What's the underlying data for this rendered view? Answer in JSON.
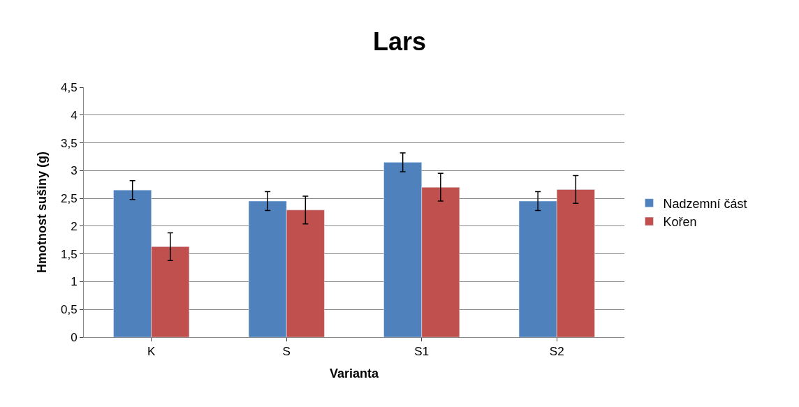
{
  "chart_data": {
    "type": "bar",
    "title": "Lars",
    "xlabel": "Varianta",
    "ylabel": "Hmotnost sušiny (g)",
    "categories": [
      "K",
      "S",
      "S1",
      "S2"
    ],
    "series": [
      {
        "name": "Nadzemní část",
        "color": "#4f81bd",
        "values": [
          2.65,
          2.45,
          3.15,
          2.45
        ],
        "errors": [
          0.17,
          0.17,
          0.17,
          0.17
        ]
      },
      {
        "name": "Kořen",
        "color": "#c0504d",
        "values": [
          1.63,
          2.29,
          2.7,
          2.66
        ],
        "errors": [
          0.25,
          0.25,
          0.25,
          0.25
        ]
      }
    ],
    "ylim": [
      0,
      4.5
    ],
    "yticks": [
      {
        "value": 0,
        "label": "0"
      },
      {
        "value": 0.5,
        "label": "0,5"
      },
      {
        "value": 1,
        "label": "1"
      },
      {
        "value": 1.5,
        "label": "1,5"
      },
      {
        "value": 2,
        "label": "2"
      },
      {
        "value": 2.5,
        "label": "2,5"
      },
      {
        "value": 3,
        "label": "3"
      },
      {
        "value": 3.5,
        "label": "3,5"
      },
      {
        "value": 4,
        "label": "4"
      },
      {
        "value": 4.5,
        "label": "4,5"
      }
    ],
    "grid": "y",
    "legend": "right"
  }
}
